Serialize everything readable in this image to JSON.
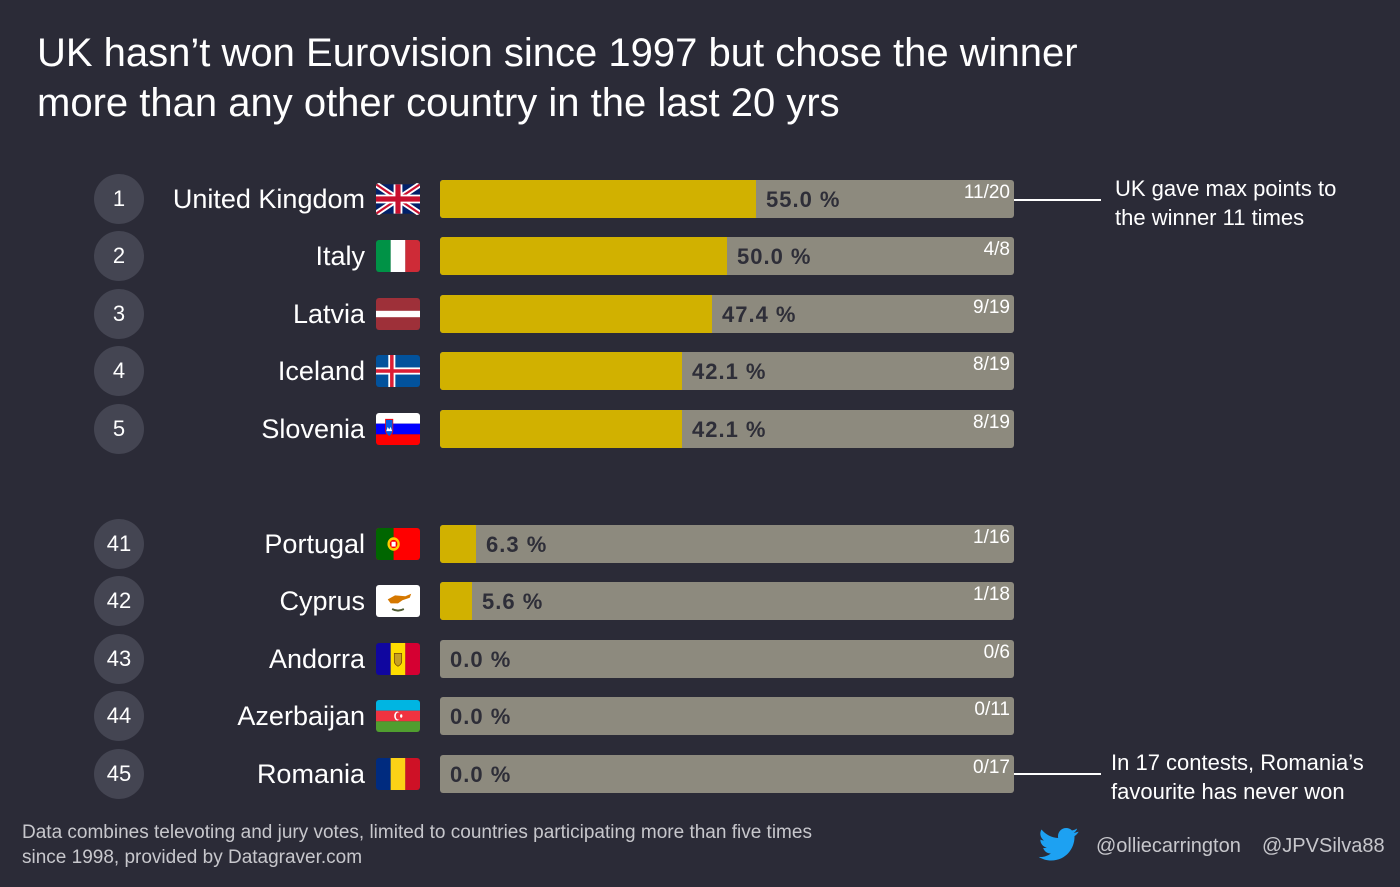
{
  "title": {
    "line1": "UK hasn’t won Eurovision since 1997 but chose the winner",
    "line2": "more than any other country in the last 20 yrs"
  },
  "chart_data": {
    "type": "bar",
    "orientation": "horizontal",
    "title": "UK hasn’t won Eurovision since 1997 but chose the winner more than any other country in the last 20 yrs",
    "xlim": [
      0,
      100
    ],
    "unit": "%",
    "categories": [
      "United Kingdom",
      "Italy",
      "Latvia",
      "Iceland",
      "Slovenia",
      "Portugal",
      "Cyprus",
      "Andorra",
      "Azerbaijan",
      "Romania"
    ],
    "values": [
      55.0,
      50.0,
      47.4,
      42.1,
      42.1,
      6.3,
      5.6,
      0.0,
      0.0,
      0.0
    ],
    "rows": [
      {
        "rank": "1",
        "country": "United Kingdom",
        "flag": "uk-flag",
        "value": 55.0,
        "label": "55.0 %",
        "ratio": "11/20"
      },
      {
        "rank": "2",
        "country": "Italy",
        "flag": "italy-flag",
        "value": 50.0,
        "label": "50.0 %",
        "ratio": "4/8"
      },
      {
        "rank": "3",
        "country": "Latvia",
        "flag": "latvia-flag",
        "value": 47.4,
        "label": "47.4 %",
        "ratio": "9/19"
      },
      {
        "rank": "4",
        "country": "Iceland",
        "flag": "iceland-flag",
        "value": 42.1,
        "label": "42.1 %",
        "ratio": "8/19"
      },
      {
        "rank": "5",
        "country": "Slovenia",
        "flag": "slovenia-flag",
        "value": 42.1,
        "label": "42.1 %",
        "ratio": "8/19"
      },
      {
        "rank": "41",
        "country": "Portugal",
        "flag": "portugal-flag",
        "value": 6.3,
        "label": "6.3 %",
        "ratio": "1/16"
      },
      {
        "rank": "42",
        "country": "Cyprus",
        "flag": "cyprus-flag",
        "value": 5.6,
        "label": "5.6 %",
        "ratio": "1/18"
      },
      {
        "rank": "43",
        "country": "Andorra",
        "flag": "andorra-flag",
        "value": 0.0,
        "label": "0.0 %",
        "ratio": "0/6"
      },
      {
        "rank": "44",
        "country": "Azerbaijan",
        "flag": "azerbaijan-flag",
        "value": 0.0,
        "label": "0.0 %",
        "ratio": "0/11"
      },
      {
        "rank": "45",
        "country": "Romania",
        "flag": "romania-flag",
        "value": 0.0,
        "label": "0.0 %",
        "ratio": "0/17"
      }
    ],
    "annotations": [
      {
        "line1": "UK gave max points to",
        "line2": "the winner 11 times"
      },
      {
        "line1": "In 17 contests, Romania’s",
        "line2": "favourite has never won"
      }
    ]
  },
  "footnote": {
    "line1": "Data combines televoting and jury votes, limited to countries participating more than five times",
    "line2": "since 1998, provided by Datagraver.com"
  },
  "credits": {
    "icon": "twitter-bird-icon",
    "handle1": "@olliecarrington",
    "handle2": "@JPVSilva88"
  },
  "colors": {
    "background": "#2b2b37",
    "bar_fill": "#d1b100",
    "bar_track": "#8d8a7e",
    "rank_circle": "#444552",
    "twitter": "#1da1f2"
  }
}
